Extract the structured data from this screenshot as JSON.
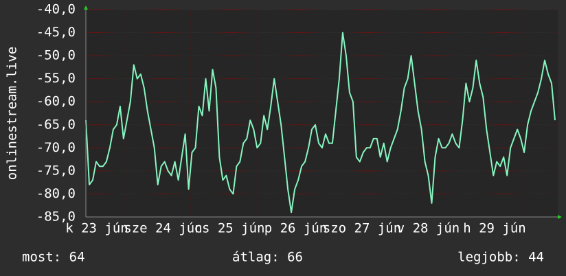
{
  "chart_data": {
    "type": "line",
    "y_label": "onlinestream.live",
    "ylim": [
      -85,
      -40
    ],
    "yticks": [
      {
        "value": -40,
        "label": "-40,0"
      },
      {
        "value": -45,
        "label": "-45,0"
      },
      {
        "value": -50,
        "label": "-50,0"
      },
      {
        "value": -55,
        "label": "-55,0"
      },
      {
        "value": -60,
        "label": "-60,0"
      },
      {
        "value": -65,
        "label": "-65,0"
      },
      {
        "value": -70,
        "label": "-70,0"
      },
      {
        "value": -75,
        "label": "-75,0"
      },
      {
        "value": -80,
        "label": "-80,0"
      },
      {
        "value": -85,
        "label": "-85,0"
      }
    ],
    "x_labels": [
      "k 23 jún",
      "sze 24 jún",
      "cs 25 jún",
      "p 26 jún",
      "szo 27 jún",
      "v 28 jún",
      "h 29 jún"
    ],
    "grid": true,
    "series": [
      {
        "name": "onlinestream.live",
        "color": "#86f5c0",
        "values": [
          -64,
          -78,
          -77,
          -73,
          -74,
          -74,
          -73,
          -70,
          -66,
          -65,
          -61,
          -68,
          -64,
          -60,
          -52,
          -55,
          -54,
          -57,
          -62,
          -66,
          -70,
          -78,
          -74,
          -73,
          -75,
          -76,
          -73,
          -77,
          -72,
          -67,
          -79,
          -71,
          -70,
          -61,
          -63,
          -55,
          -62,
          -53,
          -57,
          -72,
          -77,
          -76,
          -79,
          -80,
          -74,
          -73,
          -69,
          -68,
          -64,
          -66,
          -70,
          -69,
          -63,
          -66,
          -61,
          -55,
          -60,
          -65,
          -72,
          -79,
          -84,
          -79,
          -77,
          -74,
          -73,
          -70,
          -66,
          -65,
          -69,
          -70,
          -67,
          -69,
          -69,
          -62,
          -55,
          -45,
          -50,
          -58,
          -60,
          -72,
          -73,
          -71,
          -70,
          -70,
          -68,
          -68,
          -72,
          -69,
          -73,
          -70,
          -68,
          -66,
          -62,
          -57,
          -55,
          -50,
          -56,
          -62,
          -66,
          -73,
          -76,
          -82,
          -72,
          -68,
          -70,
          -70,
          -69,
          -67,
          -69,
          -70,
          -64,
          -56,
          -60,
          -57,
          -51,
          -56,
          -59,
          -66,
          -71,
          -76,
          -73,
          -74,
          -72,
          -76,
          -70,
          -68,
          -66,
          -68,
          -71,
          -65,
          -62,
          -60,
          -58,
          -55,
          -51,
          -54,
          -56,
          -64
        ]
      }
    ],
    "stats": [
      "most: 64",
      "átlag: 66",
      "legjobb: 44"
    ]
  }
}
